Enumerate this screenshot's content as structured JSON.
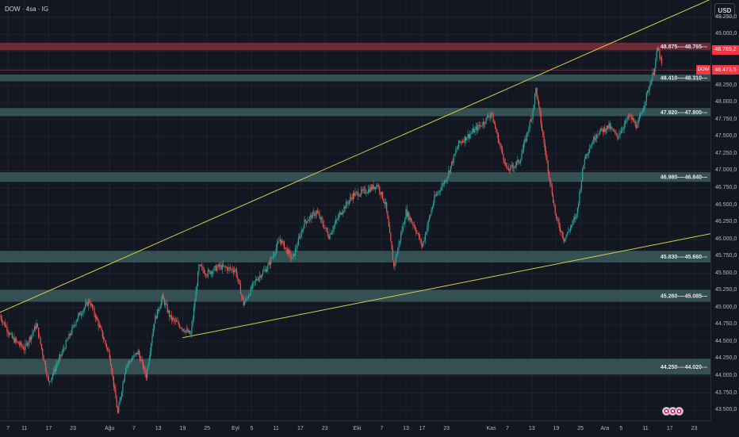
{
  "header": {
    "symbol": "DOW",
    "interval": "4sa",
    "source": "IG",
    "title": "DOW · 4sa · IG"
  },
  "currency": "USD",
  "price_tags": {
    "upper": {
      "text": "48.769,2",
      "color": "#f23645"
    },
    "last": {
      "text": "48.473,5",
      "color": "#f23645",
      "label": "DOW"
    }
  },
  "chart_data": {
    "type": "candlestick",
    "y_axis": {
      "range": [
        43350,
        49500
      ],
      "ticks": [
        43500,
        43750,
        44000,
        44250,
        44500,
        44750,
        45000,
        45250,
        45500,
        45750,
        46000,
        46250,
        46500,
        46750,
        47000,
        47250,
        47500,
        47750,
        48000,
        48250,
        48500,
        48750,
        49000,
        49250
      ],
      "tick_labels": [
        "43.500,0",
        "43.750,0",
        "44.000,0",
        "44.250,0",
        "44.500,0",
        "44.750,0",
        "45.000,0",
        "45.250,0",
        "45.500,0",
        "45.750,0",
        "46.000,0",
        "46.250,0",
        "46.500,0",
        "46.750,0",
        "47.000,0",
        "47.250,0",
        "47.500,0",
        "47.750,0",
        "48.000,0",
        "48.250,0",
        "48.500,0",
        "48.750,0",
        "49.000,0",
        "49.250,0"
      ]
    },
    "x_axis": {
      "range": [
        "2025-07-05",
        "2025-12-27"
      ],
      "ticks": [
        {
          "date": "2025-07-07",
          "label": "7"
        },
        {
          "date": "2025-07-11",
          "label": "11"
        },
        {
          "date": "2025-07-17",
          "label": "17"
        },
        {
          "date": "2025-07-23",
          "label": "23"
        },
        {
          "date": "2025-08-01",
          "label": "Ağu"
        },
        {
          "date": "2025-08-07",
          "label": "7"
        },
        {
          "date": "2025-08-13",
          "label": "13"
        },
        {
          "date": "2025-08-19",
          "label": "19"
        },
        {
          "date": "2025-08-25",
          "label": "25"
        },
        {
          "date": "2025-09-01",
          "label": "Eyl"
        },
        {
          "date": "2025-09-05",
          "label": "5"
        },
        {
          "date": "2025-09-11",
          "label": "11"
        },
        {
          "date": "2025-09-17",
          "label": "17"
        },
        {
          "date": "2025-09-23",
          "label": "23"
        },
        {
          "date": "2025-10-01",
          "label": "Eki"
        },
        {
          "date": "2025-10-07",
          "label": "7"
        },
        {
          "date": "2025-10-13",
          "label": "13"
        },
        {
          "date": "2025-10-17",
          "label": "17"
        },
        {
          "date": "2025-10-23",
          "label": "23"
        },
        {
          "date": "2025-11-03",
          "label": "Kas"
        },
        {
          "date": "2025-11-07",
          "label": "7"
        },
        {
          "date": "2025-11-13",
          "label": "13"
        },
        {
          "date": "2025-11-19",
          "label": "19"
        },
        {
          "date": "2025-11-25",
          "label": "25"
        },
        {
          "date": "2025-12-01",
          "label": "Ara"
        },
        {
          "date": "2025-12-05",
          "label": "5"
        },
        {
          "date": "2025-12-11",
          "label": "11"
        },
        {
          "date": "2025-12-17",
          "label": "17"
        },
        {
          "date": "2025-12-23",
          "label": "23"
        }
      ]
    },
    "price_path": [
      [
        "2025-07-05",
        44880
      ],
      [
        "2025-07-08",
        44550
      ],
      [
        "2025-07-11",
        44400
      ],
      [
        "2025-07-14",
        44750
      ],
      [
        "2025-07-17",
        43900
      ],
      [
        "2025-07-20",
        44300
      ],
      [
        "2025-07-24",
        44850
      ],
      [
        "2025-07-27",
        45100
      ],
      [
        "2025-07-29",
        44800
      ],
      [
        "2025-08-01",
        44300
      ],
      [
        "2025-08-03",
        43450
      ],
      [
        "2025-08-05",
        44150
      ],
      [
        "2025-08-08",
        44350
      ],
      [
        "2025-08-10",
        44000
      ],
      [
        "2025-08-12",
        44800
      ],
      [
        "2025-08-14",
        45150
      ],
      [
        "2025-08-16",
        44850
      ],
      [
        "2025-08-19",
        44700
      ],
      [
        "2025-08-21",
        44600
      ],
      [
        "2025-08-23",
        45600
      ],
      [
        "2025-08-25",
        45500
      ],
      [
        "2025-08-28",
        45600
      ],
      [
        "2025-09-01",
        45550
      ],
      [
        "2025-09-03",
        45050
      ],
      [
        "2025-09-06",
        45400
      ],
      [
        "2025-09-09",
        45600
      ],
      [
        "2025-09-12",
        46000
      ],
      [
        "2025-09-15",
        45700
      ],
      [
        "2025-09-18",
        46250
      ],
      [
        "2025-09-21",
        46400
      ],
      [
        "2025-09-24",
        46050
      ],
      [
        "2025-09-27",
        46400
      ],
      [
        "2025-09-30",
        46650
      ],
      [
        "2025-10-03",
        46700
      ],
      [
        "2025-10-06",
        46800
      ],
      [
        "2025-10-08",
        46500
      ],
      [
        "2025-10-10",
        45600
      ],
      [
        "2025-10-13",
        46400
      ],
      [
        "2025-10-15",
        46200
      ],
      [
        "2025-10-17",
        45900
      ],
      [
        "2025-10-20",
        46600
      ],
      [
        "2025-10-23",
        46900
      ],
      [
        "2025-10-26",
        47400
      ],
      [
        "2025-10-29",
        47550
      ],
      [
        "2025-11-01",
        47700
      ],
      [
        "2025-11-03",
        47850
      ],
      [
        "2025-11-05",
        47400
      ],
      [
        "2025-11-07",
        47000
      ],
      [
        "2025-11-10",
        47150
      ],
      [
        "2025-11-13",
        47800
      ],
      [
        "2025-11-14",
        48200
      ],
      [
        "2025-11-16",
        47400
      ],
      [
        "2025-11-19",
        46300
      ],
      [
        "2025-11-21",
        46000
      ],
      [
        "2025-11-24",
        46350
      ],
      [
        "2025-11-26",
        47200
      ],
      [
        "2025-11-29",
        47550
      ],
      [
        "2025-12-02",
        47650
      ],
      [
        "2025-12-04",
        47500
      ],
      [
        "2025-12-07",
        47800
      ],
      [
        "2025-12-09",
        47650
      ],
      [
        "2025-12-11",
        48050
      ],
      [
        "2025-12-13",
        48450
      ],
      [
        "2025-12-14",
        48800
      ],
      [
        "2025-12-15",
        48550
      ]
    ],
    "resistance_zones": [
      {
        "high": 48875,
        "low": 48765,
        "label": "48.875----48.765---",
        "color": "#7a2f3a"
      },
      {
        "high": 48410,
        "low": 48310,
        "label": "48.410----48.310---",
        "color": "#3c5a5c"
      },
      {
        "high": 47920,
        "low": 47800,
        "label": "47.920----47.800---",
        "color": "#3c5a5c"
      },
      {
        "high": 46980,
        "low": 46840,
        "label": "46.980----46.840---",
        "color": "#3c5a5c"
      },
      {
        "high": 45830,
        "low": 45660,
        "label": "45.830----45.660---",
        "color": "#3c5a5c"
      },
      {
        "high": 45260,
        "low": 45085,
        "label": "45.260----45.085---",
        "color": "#3c5a5c"
      },
      {
        "high": 44250,
        "low": 44020,
        "label": "44.250----44.020---",
        "color": "#3c5a5c"
      }
    ],
    "trendlines": [
      {
        "name": "upper-channel",
        "from": [
          "2025-07-05",
          44930
        ],
        "to": [
          "2025-12-27",
          49510
        ],
        "color": "#d4d04a"
      },
      {
        "name": "lower-channel",
        "from": [
          "2025-08-19",
          44560
        ],
        "to": [
          "2025-12-27",
          46080
        ],
        "color": "#d4d04a"
      }
    ],
    "last_price_line": 48473.5,
    "colors": {
      "up": "#26a69a",
      "down": "#ef5350",
      "grid": "#1e222d"
    }
  }
}
